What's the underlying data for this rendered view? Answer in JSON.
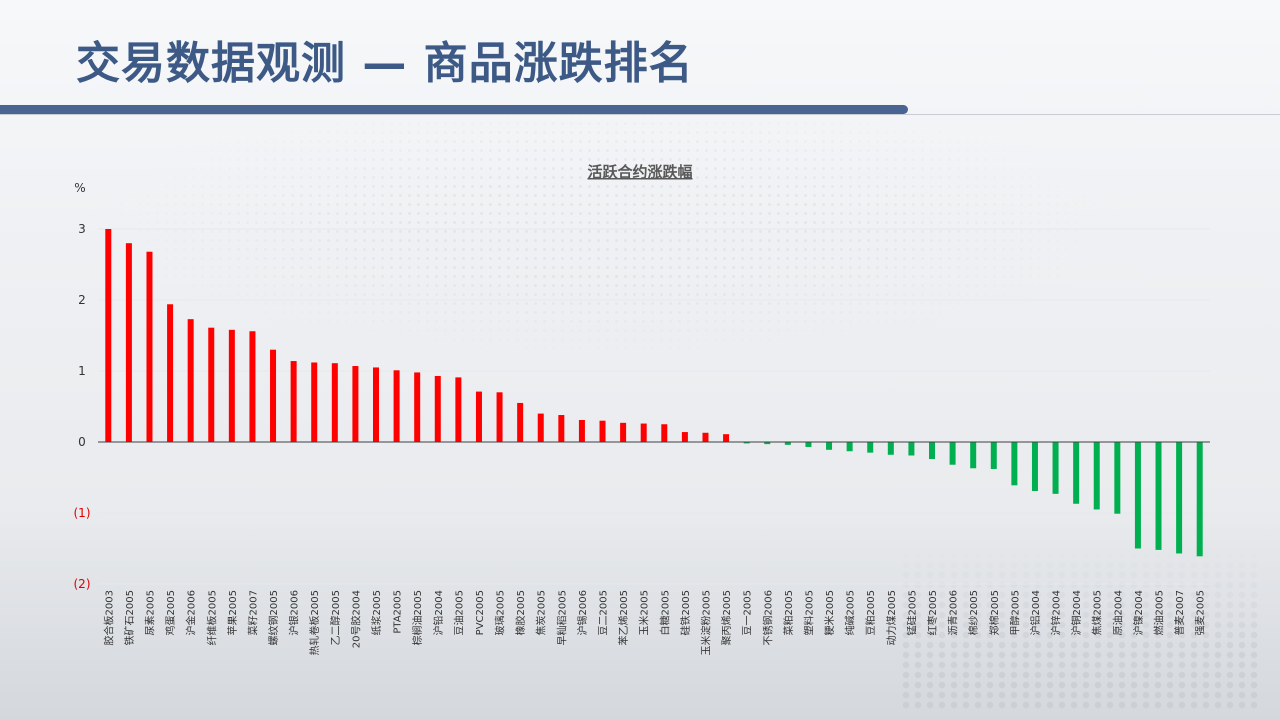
{
  "page": {
    "title": "交易数据观测 — 商品涨跌排名"
  },
  "chart_data": {
    "type": "bar",
    "title": "活跃合约涨跌幅",
    "ylabel": "%",
    "ylim": [
      -2,
      3
    ],
    "yticks": [
      3,
      2,
      1,
      0,
      -1,
      -2
    ],
    "ytick_labels": [
      "3",
      "2",
      "1",
      "0",
      "(1)",
      "(2)"
    ],
    "positive_color": "#ff0000",
    "negative_color": "#00b050",
    "negative_label_color": "#e00000",
    "categories": [
      "胶合板2003",
      "铁矿石2005",
      "尿素2005",
      "鸡蛋2005",
      "沪金2006",
      "纤维板2005",
      "苹果2005",
      "菜籽2007",
      "螺纹钢2005",
      "沪银2006",
      "热轧卷板2005",
      "乙二醇2005",
      "20号胶2004",
      "纸浆2005",
      "PTA2005",
      "棕榈油2005",
      "沪铅2004",
      "豆油2005",
      "PVC2005",
      "玻璃2005",
      "橡胶2005",
      "焦炭2005",
      "早籼稻2005",
      "沪锡2006",
      "豆二2005",
      "苯乙烯2005",
      "玉米2005",
      "白糖2005",
      "硅铁2005",
      "玉米淀粉2005",
      "聚丙烯2005",
      "豆一2005",
      "不锈钢2006",
      "菜粕2005",
      "塑料2005",
      "粳米2005",
      "纯碱2005",
      "豆粕2005",
      "动力煤2005",
      "锰硅2005",
      "红枣2005",
      "沥青2006",
      "棉纱2005",
      "郑棉2005",
      "甲醇2005",
      "沪铝2004",
      "沪锌2004",
      "沪铜2004",
      "焦煤2005",
      "原油2004",
      "沪镍2004",
      "燃油2005",
      "普麦2007",
      "强麦2005"
    ],
    "values": [
      3.0,
      2.8,
      2.68,
      1.94,
      1.73,
      1.61,
      1.58,
      1.56,
      1.3,
      1.14,
      1.12,
      1.11,
      1.07,
      1.05,
      1.01,
      0.98,
      0.93,
      0.91,
      0.71,
      0.7,
      0.55,
      0.4,
      0.38,
      0.31,
      0.3,
      0.27,
      0.26,
      0.25,
      0.14,
      0.13,
      0.11,
      -0.02,
      -0.03,
      -0.04,
      -0.07,
      -0.11,
      -0.13,
      -0.15,
      -0.18,
      -0.19,
      -0.24,
      -0.32,
      -0.37,
      -0.38,
      -0.61,
      -0.69,
      -0.73,
      -0.87,
      -0.95,
      -1.01,
      -1.5,
      -1.52,
      -1.57,
      -1.61
    ]
  }
}
